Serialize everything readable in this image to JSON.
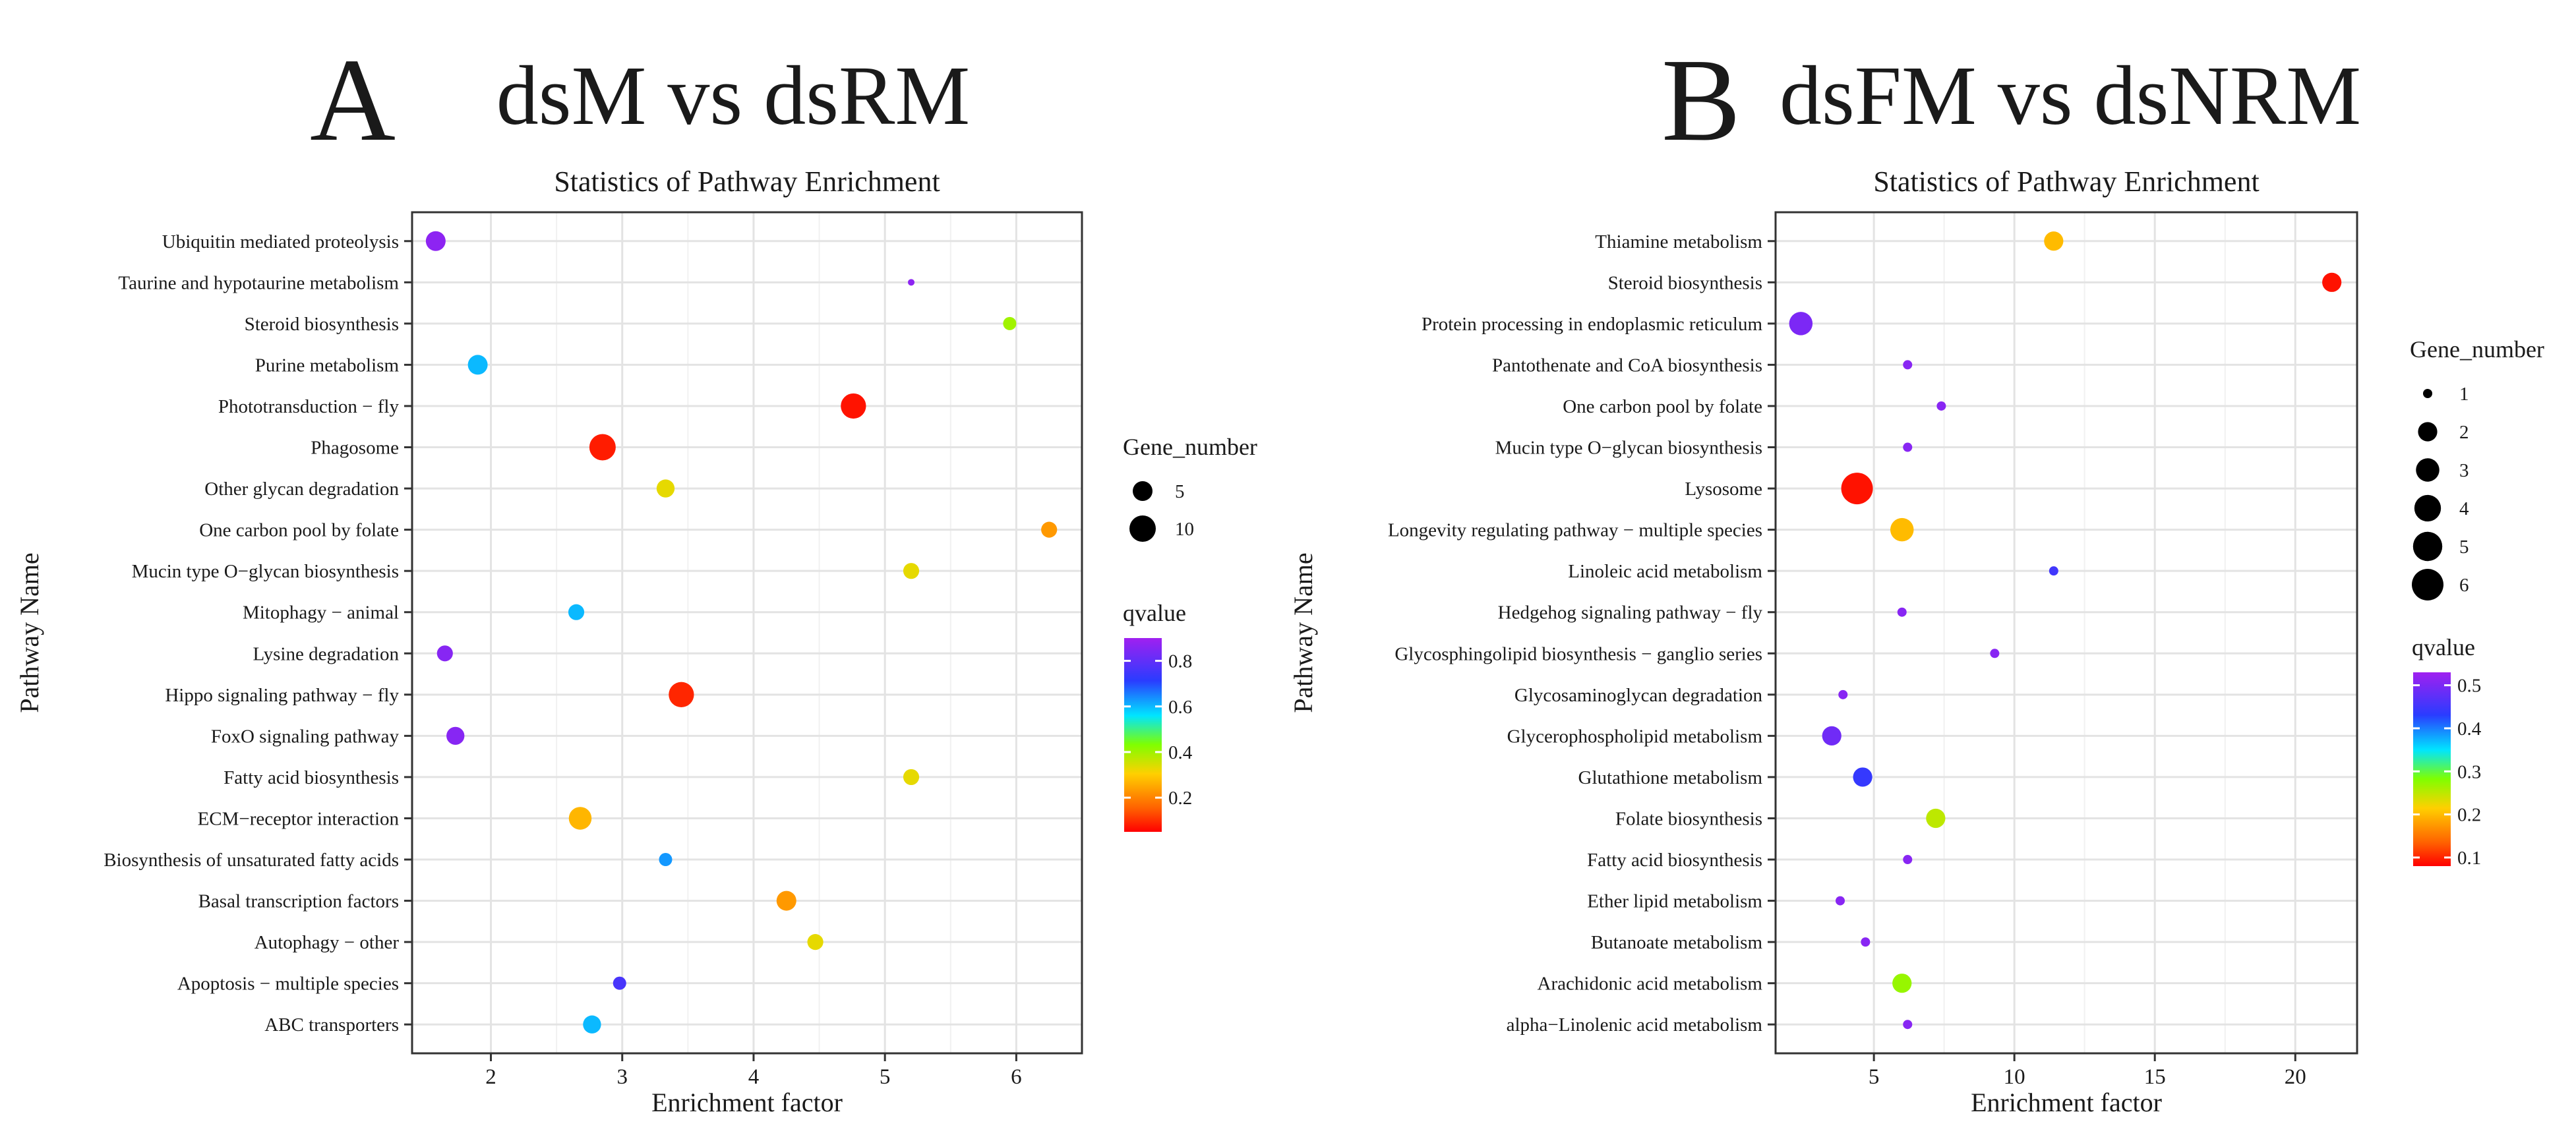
{
  "chart_data": [
    {
      "type": "scatter",
      "panel_label": "A",
      "panel_title": "dsM vs dsRM",
      "title": "Statistics of Pathway Enrichment",
      "xlabel": "Enrichment factor",
      "ylabel": "Pathway Name",
      "xlim": [
        1.4,
        6.5
      ],
      "xticks": [
        2,
        3,
        4,
        5,
        6
      ],
      "size_legend": {
        "title": "Gene_number",
        "values": [
          5,
          10
        ]
      },
      "color_legend": {
        "title": "qvalue",
        "range": [
          0.05,
          0.9
        ],
        "ticks": [
          0.2,
          0.4,
          0.6,
          0.8
        ],
        "ticklabels": [
          "0.2",
          "0.4",
          "0.6",
          "0.8"
        ]
      },
      "points": [
        {
          "pathway": "Ubiquitin mediated proteolysis",
          "x": 1.58,
          "gene_number": 5,
          "qvalue": 0.87
        },
        {
          "pathway": "Taurine and hypotaurine metabolism",
          "x": 5.2,
          "gene_number": 1,
          "qvalue": 0.87
        },
        {
          "pathway": "Steroid biosynthesis",
          "x": 5.95,
          "gene_number": 2,
          "qvalue": 0.4
        },
        {
          "pathway": "Purine metabolism",
          "x": 1.9,
          "gene_number": 5,
          "qvalue": 0.6
        },
        {
          "pathway": "Phototransduction − fly",
          "x": 4.76,
          "gene_number": 9,
          "qvalue": 0.07
        },
        {
          "pathway": "Phagosome",
          "x": 2.85,
          "gene_number": 10,
          "qvalue": 0.08
        },
        {
          "pathway": "Other glycan degradation",
          "x": 3.33,
          "gene_number": 4,
          "qvalue": 0.33
        },
        {
          "pathway": "One carbon pool by folate",
          "x": 6.25,
          "gene_number": 3,
          "qvalue": 0.23
        },
        {
          "pathway": "Mucin type O−glycan biosynthesis",
          "x": 5.2,
          "gene_number": 3,
          "qvalue": 0.33
        },
        {
          "pathway": "Mitophagy − animal",
          "x": 2.65,
          "gene_number": 3,
          "qvalue": 0.6
        },
        {
          "pathway": "Lysine degradation",
          "x": 1.65,
          "gene_number": 3,
          "qvalue": 0.86
        },
        {
          "pathway": "Hippo signaling pathway − fly",
          "x": 3.45,
          "gene_number": 9,
          "qvalue": 0.09
        },
        {
          "pathway": "FoxO signaling pathway",
          "x": 1.73,
          "gene_number": 4,
          "qvalue": 0.86
        },
        {
          "pathway": "Fatty acid biosynthesis",
          "x": 5.2,
          "gene_number": 3,
          "qvalue": 0.33
        },
        {
          "pathway": "ECM−receptor interaction",
          "x": 2.68,
          "gene_number": 7,
          "qvalue": 0.27
        },
        {
          "pathway": "Biosynthesis of unsaturated fatty acids",
          "x": 3.33,
          "gene_number": 2,
          "qvalue": 0.63
        },
        {
          "pathway": "Basal transcription factors",
          "x": 4.25,
          "gene_number": 5,
          "qvalue": 0.23
        },
        {
          "pathway": "Autophagy − other",
          "x": 4.47,
          "gene_number": 3,
          "qvalue": 0.33
        },
        {
          "pathway": "Apoptosis − multiple species",
          "x": 2.98,
          "gene_number": 2,
          "qvalue": 0.76
        },
        {
          "pathway": "ABC transporters",
          "x": 2.77,
          "gene_number": 4,
          "qvalue": 0.6
        }
      ]
    },
    {
      "type": "scatter",
      "panel_label": "B",
      "panel_title": "dsFM vs dsNRM",
      "title": "Statistics of Pathway Enrichment",
      "xlabel": "Enrichment factor",
      "ylabel": "Pathway Name",
      "xlim": [
        1.5,
        22.2
      ],
      "xticks": [
        5,
        10,
        15,
        20
      ],
      "size_legend": {
        "title": "Gene_number",
        "values": [
          1,
          2,
          3,
          4,
          5,
          6
        ]
      },
      "color_legend": {
        "title": "qvalue",
        "range": [
          0.08,
          0.53
        ],
        "ticks": [
          0.1,
          0.2,
          0.3,
          0.4,
          0.5
        ],
        "ticklabels": [
          "0.1",
          "0.2",
          "0.3",
          "0.4",
          "0.5"
        ]
      },
      "points": [
        {
          "pathway": "Thiamine metabolism",
          "x": 11.4,
          "gene_number": 2,
          "qvalue": 0.2
        },
        {
          "pathway": "Steroid biosynthesis",
          "x": 21.3,
          "gene_number": 2,
          "qvalue": 0.09
        },
        {
          "pathway": "Protein processing in endoplasmic reticulum",
          "x": 2.4,
          "gene_number": 3,
          "qvalue": 0.5
        },
        {
          "pathway": "Pantothenate and CoA biosynthesis",
          "x": 6.2,
          "gene_number": 1,
          "qvalue": 0.51
        },
        {
          "pathway": "One carbon pool by folate",
          "x": 7.4,
          "gene_number": 1,
          "qvalue": 0.51
        },
        {
          "pathway": "Mucin type O−glycan biosynthesis",
          "x": 6.2,
          "gene_number": 1,
          "qvalue": 0.51
        },
        {
          "pathway": "Lysosome",
          "x": 4.4,
          "gene_number": 6,
          "qvalue": 0.09
        },
        {
          "pathway": "Longevity regulating pathway − multiple species",
          "x": 6.0,
          "gene_number": 3,
          "qvalue": 0.2
        },
        {
          "pathway": "Linoleic acid metabolism",
          "x": 11.4,
          "gene_number": 1,
          "qvalue": 0.45
        },
        {
          "pathway": "Hedgehog signaling pathway − fly",
          "x": 6.0,
          "gene_number": 1,
          "qvalue": 0.51
        },
        {
          "pathway": "Glycosphingolipid biosynthesis − ganglio series",
          "x": 9.3,
          "gene_number": 1,
          "qvalue": 0.51
        },
        {
          "pathway": "Glycosaminoglycan degradation",
          "x": 3.9,
          "gene_number": 1,
          "qvalue": 0.51
        },
        {
          "pathway": "Glycerophospholipid metabolism",
          "x": 3.5,
          "gene_number": 2,
          "qvalue": 0.49
        },
        {
          "pathway": "Glutathione metabolism",
          "x": 4.6,
          "gene_number": 2,
          "qvalue": 0.44
        },
        {
          "pathway": "Folate biosynthesis",
          "x": 7.2,
          "gene_number": 2,
          "qvalue": 0.25
        },
        {
          "pathway": "Fatty acid biosynthesis",
          "x": 6.2,
          "gene_number": 1,
          "qvalue": 0.51
        },
        {
          "pathway": "Ether lipid metabolism",
          "x": 3.8,
          "gene_number": 1,
          "qvalue": 0.51
        },
        {
          "pathway": "Butanoate metabolism",
          "x": 4.7,
          "gene_number": 1,
          "qvalue": 0.51
        },
        {
          "pathway": "Arachidonic acid metabolism",
          "x": 6.0,
          "gene_number": 2,
          "qvalue": 0.27
        },
        {
          "pathway": "alpha−Linolenic acid metabolism",
          "x": 6.2,
          "gene_number": 1,
          "qvalue": 0.51
        }
      ]
    }
  ]
}
